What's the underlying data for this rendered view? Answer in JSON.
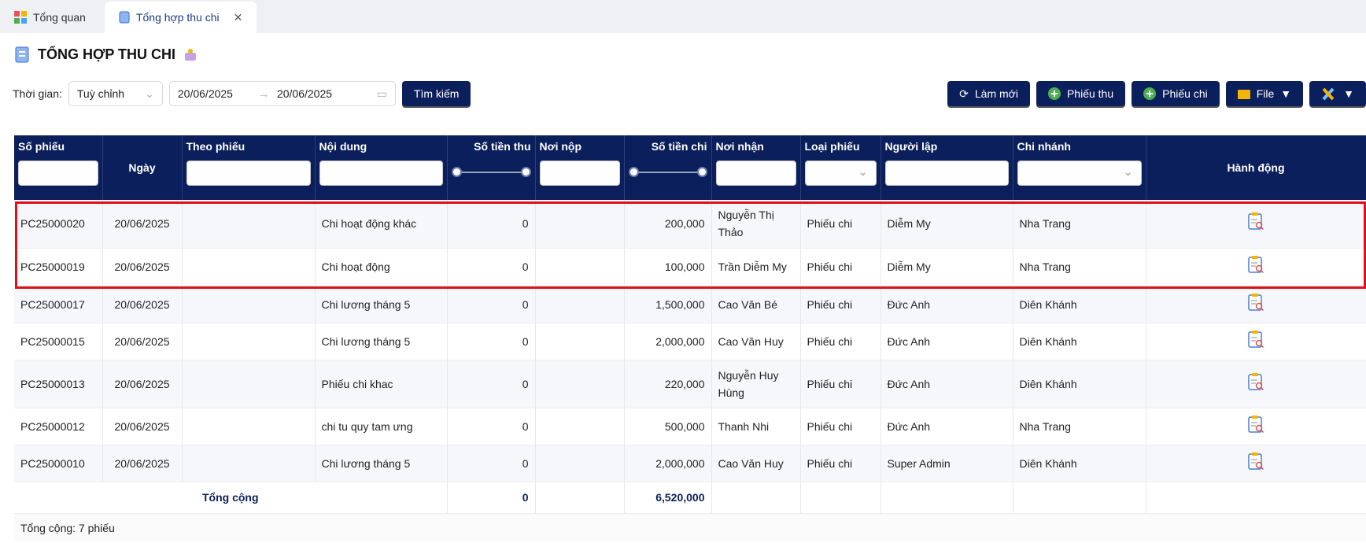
{
  "tabs": [
    "Tổng quan",
    "Tổng hợp thu chi"
  ],
  "title": "TỔNG HỢP THU CHI",
  "filter": {
    "label": "Thời gian:",
    "period": "Tuỳ chỉnh",
    "from": "20/06/2025",
    "to": "20/06/2025",
    "search": "Tìm kiếm"
  },
  "actions": [
    "Làm mới",
    "Phiếu thu",
    "Phiếu chi",
    "File"
  ],
  "table": {
    "columns": [
      "Số phiếu",
      "Ngày",
      "Theo phiếu",
      "Nội dung",
      "Số tiền thu",
      "Nơi nộp",
      "Số tiền chi",
      "Nơi nhận",
      "Loại phiếu",
      "Người lập",
      "Chi nhánh",
      "Hành động"
    ],
    "rows": [
      {
        "so_phieu": "PC25000020",
        "ngay": "20/06/2025",
        "noi_dung": "Chi hoạt động khác",
        "thu": "0",
        "chi": "200,000",
        "noi_nhan": "Nguyễn Thị Thảo",
        "loai": "Phiếu chi",
        "nguoi_lap": "Diễm My",
        "chi_nhanh": "Nha Trang"
      },
      {
        "so_phieu": "PC25000019",
        "ngay": "20/06/2025",
        "noi_dung": "Chi hoạt động",
        "thu": "0",
        "chi": "100,000",
        "noi_nhan": "Trần Diễm My",
        "loai": "Phiếu chi",
        "nguoi_lap": "Diễm My",
        "chi_nhanh": "Nha Trang"
      },
      {
        "so_phieu": "PC25000017",
        "ngay": "20/06/2025",
        "noi_dung": "Chi lương tháng 5",
        "thu": "0",
        "chi": "1,500,000",
        "noi_nhan": "Cao Văn Bé",
        "loai": "Phiếu chi",
        "nguoi_lap": "Đức Anh",
        "chi_nhanh": "Diên Khánh"
      },
      {
        "so_phieu": "PC25000015",
        "ngay": "20/06/2025",
        "noi_dung": "Chi lương tháng 5",
        "thu": "0",
        "chi": "2,000,000",
        "noi_nhan": "Cao Văn Huy",
        "loai": "Phiếu chi",
        "nguoi_lap": "Đức Anh",
        "chi_nhanh": "Diên Khánh"
      },
      {
        "so_phieu": "PC25000013",
        "ngay": "20/06/2025",
        "noi_dung": "Phiếu chi khac",
        "thu": "0",
        "chi": "220,000",
        "noi_nhan": "Nguyễn Huy Hùng",
        "loai": "Phiếu chi",
        "nguoi_lap": "Đức Anh",
        "chi_nhanh": "Diên Khánh"
      },
      {
        "so_phieu": "PC25000012",
        "ngay": "20/06/2025",
        "noi_dung": "chi tu quy tam ưng",
        "thu": "0",
        "chi": "500,000",
        "noi_nhan": "Thanh Nhi",
        "loai": "Phiếu chi",
        "nguoi_lap": "Đức Anh",
        "chi_nhanh": "Nha Trang"
      },
      {
        "so_phieu": "PC25000010",
        "ngay": "20/06/2025",
        "noi_dung": "Chi lương tháng 5",
        "thu": "0",
        "chi": "2,000,000",
        "noi_nhan": "Cao Văn Huy",
        "loai": "Phiếu chi",
        "nguoi_lap": "Super Admin",
        "chi_nhanh": "Diên Khánh"
      }
    ],
    "total": {
      "label": "Tổng cộng",
      "thu": "0",
      "chi": "6,520,000"
    }
  },
  "footer": "Tổng cộng: 7 phiếu"
}
